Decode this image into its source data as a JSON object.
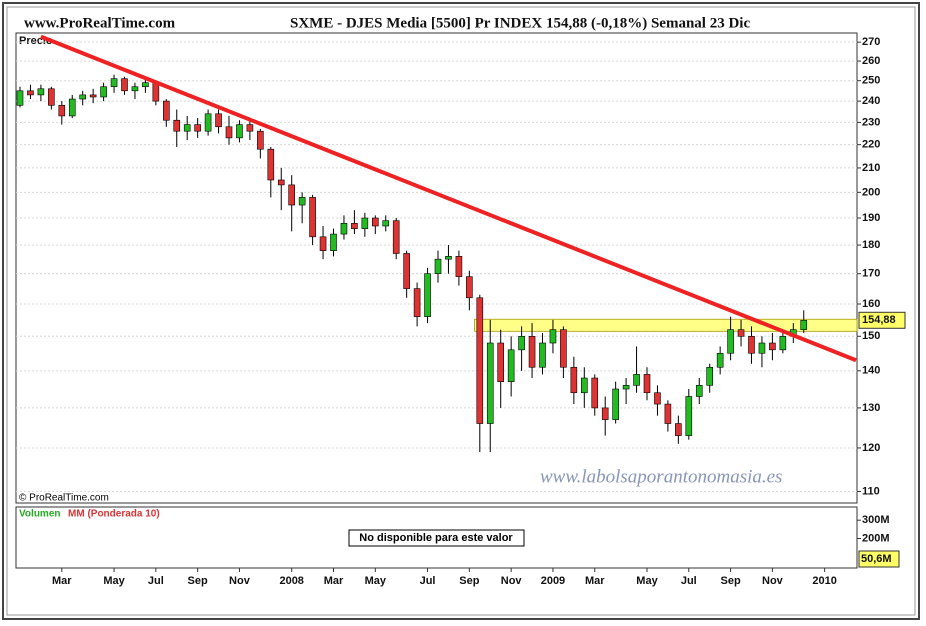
{
  "chart_data": {
    "type": "candlestick",
    "site": "www.ProRealTime.com",
    "title": "SXME - DJES Media [5500] Pr INDEX    154,88 (-0,18%)    Semanal  23 Dic",
    "price_label": "Precio",
    "copyright": "© ProRealTime.com",
    "watermark": "www.labolsaporantonomasia.es",
    "log_scale": true,
    "grid": true,
    "up_color": "#22bb22",
    "down_color": "#dd3333",
    "categories": [
      null,
      null,
      null,
      null,
      "Mar",
      null,
      null,
      null,
      null,
      "May",
      null,
      null,
      null,
      "Jul",
      null,
      null,
      null,
      "Sep",
      null,
      null,
      null,
      "Nov",
      null,
      null,
      null,
      null,
      "2008",
      null,
      null,
      null,
      "Mar",
      null,
      null,
      null,
      "May",
      null,
      null,
      null,
      null,
      "Jul",
      null,
      null,
      null,
      "Sep",
      null,
      null,
      null,
      "Nov",
      null,
      null,
      null,
      "2009",
      null,
      null,
      null,
      "Mar",
      null,
      null,
      null,
      null,
      "May",
      null,
      null,
      null,
      "Jul",
      null,
      null,
      null,
      "Sep",
      null,
      null,
      null,
      "Nov",
      null,
      null,
      null,
      null,
      "2010"
    ],
    "open": [
      238,
      245,
      243,
      246,
      238,
      233,
      241,
      243,
      242,
      247,
      251,
      245,
      247,
      249,
      240,
      231,
      226,
      229,
      226,
      234,
      228,
      223,
      229,
      226,
      218,
      205,
      203,
      195,
      198,
      183,
      178,
      184,
      188,
      186,
      190,
      187,
      189,
      177,
      165,
      156,
      170,
      175,
      176,
      169,
      162,
      126,
      148,
      137,
      146,
      150,
      141,
      148,
      152,
      141,
      134,
      138,
      130,
      127,
      135,
      136,
      139,
      134,
      131,
      126,
      123,
      133,
      136,
      141,
      145,
      152,
      150,
      145,
      148,
      146,
      150,
      152,
      null,
      null
    ],
    "high": [
      247,
      248,
      248,
      247,
      240,
      243,
      245,
      246,
      249,
      253,
      252,
      249,
      251,
      250,
      241,
      236,
      233,
      232,
      236,
      236,
      233,
      231,
      232,
      227,
      219,
      210,
      207,
      200,
      199,
      187,
      186,
      191,
      193,
      192,
      191,
      191,
      190,
      178,
      167,
      172,
      178,
      180,
      178,
      171,
      163,
      155,
      152,
      150,
      153,
      154,
      151,
      155,
      153,
      144,
      141,
      139,
      133,
      137,
      138,
      147,
      141,
      136,
      132,
      128,
      135,
      138,
      142,
      147,
      156,
      155,
      153,
      150,
      151,
      152,
      154,
      158,
      null,
      null
    ],
    "low": [
      237,
      241,
      240,
      236,
      229,
      232,
      238,
      239,
      240,
      244,
      243,
      241,
      244,
      238,
      228,
      219,
      222,
      223,
      224,
      225,
      220,
      221,
      222,
      214,
      198,
      193,
      185,
      188,
      180,
      175,
      176,
      182,
      184,
      183,
      184,
      185,
      175,
      162,
      153,
      154,
      167,
      170,
      166,
      158,
      119,
      119,
      130,
      133,
      140,
      138,
      139,
      145,
      138,
      131,
      130,
      128,
      123,
      126,
      131,
      134,
      132,
      128,
      124,
      121,
      122,
      131,
      134,
      139,
      143,
      147,
      142,
      141,
      143,
      145,
      148,
      151,
      null,
      null
    ],
    "close": [
      245,
      243,
      246,
      238,
      233,
      241,
      243,
      242,
      247,
      251,
      245,
      247,
      249,
      240,
      231,
      226,
      229,
      226,
      234,
      228,
      223,
      229,
      226,
      218,
      205,
      203,
      195,
      198,
      183,
      178,
      184,
      188,
      186,
      190,
      187,
      189,
      177,
      165,
      156,
      170,
      175,
      176,
      169,
      162,
      126,
      148,
      137,
      146,
      150,
      141,
      148,
      152,
      141,
      134,
      138,
      130,
      127,
      135,
      136,
      139,
      134,
      131,
      126,
      123,
      133,
      136,
      141,
      145,
      152,
      150,
      145,
      148,
      146,
      150,
      152,
      154.88,
      null,
      null
    ],
    "last_value": 154.88,
    "last_value_label": "154,88",
    "ylim": [
      107.5,
      275
    ],
    "yticks": [
      110,
      120,
      130,
      140,
      150,
      160,
      170,
      180,
      190,
      200,
      210,
      220,
      230,
      240,
      250,
      260,
      270
    ],
    "trendline": {
      "color": "#ee2222",
      "start": [
        2,
        273
      ],
      "end": [
        80,
        143
      ]
    },
    "resistance_band": {
      "color": "#ffff88",
      "start": 43.5,
      "range": [
        151.5,
        155.2
      ]
    },
    "volume": {
      "label": "Volumen",
      "ma_label": "MM (Ponderada 10)",
      "message": "No disponible para este valor",
      "ylim": [
        39000000,
        372000000
      ],
      "yticks": [
        {
          "value": 300000000,
          "label": "300M"
        },
        {
          "value": 200000000,
          "label": "200M"
        }
      ],
      "last_value": 50600000,
      "last_value_label": "50,6M"
    }
  }
}
